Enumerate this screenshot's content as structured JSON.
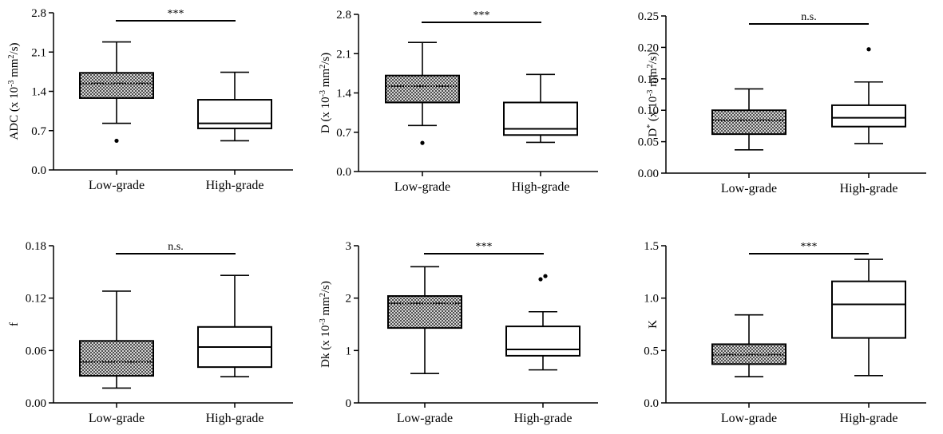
{
  "chart_data": [
    {
      "type": "box",
      "ylabel": "ADC (x 10-3 mm2/s)",
      "ylabel_parts": [
        "ADC (x 10",
        "-3",
        " mm",
        "2",
        "/s)"
      ],
      "yticks": [
        "0.0",
        "0.7",
        "1.4",
        "2.1",
        "2.8"
      ],
      "ylim": [
        0,
        2.8
      ],
      "categories": [
        "Low-grade",
        "High-grade"
      ],
      "significance": "***",
      "boxes": [
        {
          "category": "Low-grade",
          "fill": "hatched",
          "min": 0.83,
          "q1": 1.28,
          "median": 1.54,
          "q3": 1.73,
          "max": 2.28,
          "outliers": [
            0.52
          ]
        },
        {
          "category": "High-grade",
          "fill": "white",
          "min": 0.52,
          "q1": 0.74,
          "median": 0.83,
          "q3": 1.25,
          "max": 1.74,
          "outliers": []
        }
      ]
    },
    {
      "type": "box",
      "ylabel": "D (x 10-3 mm2/s)",
      "ylabel_parts": [
        "D (x 10",
        "-3",
        " mm",
        "2",
        "/s)"
      ],
      "yticks": [
        "0.0",
        "0.7",
        "1.4",
        "2.1",
        "2.8"
      ],
      "ylim": [
        0,
        2.8
      ],
      "categories": [
        "Low-grade",
        "High-grade"
      ],
      "significance": "***",
      "boxes": [
        {
          "category": "Low-grade",
          "fill": "hatched",
          "min": 0.82,
          "q1": 1.23,
          "median": 1.52,
          "q3": 1.71,
          "max": 2.3,
          "outliers": [
            0.51
          ]
        },
        {
          "category": "High-grade",
          "fill": "white",
          "min": 0.52,
          "q1": 0.65,
          "median": 0.76,
          "q3": 1.23,
          "max": 1.73,
          "outliers": []
        }
      ]
    },
    {
      "type": "box",
      "ylabel": "D* (x 10-3 mm2/s)",
      "ylabel_parts": [
        "D",
        "*",
        " (x 10",
        "-3",
        " mm",
        "2",
        "/s)"
      ],
      "yticks": [
        "0.00",
        "0.05",
        "0.10",
        "0.15",
        "0.20",
        "0.25"
      ],
      "ylim": [
        0,
        0.25
      ],
      "categories": [
        "Low-grade",
        "High-grade"
      ],
      "significance": "n.s.",
      "boxes": [
        {
          "category": "Low-grade",
          "fill": "hatched",
          "min": 0.037,
          "q1": 0.062,
          "median": 0.084,
          "q3": 0.1,
          "max": 0.134,
          "outliers": []
        },
        {
          "category": "High-grade",
          "fill": "white",
          "min": 0.047,
          "q1": 0.074,
          "median": 0.088,
          "q3": 0.108,
          "max": 0.145,
          "outliers": [
            0.197
          ]
        }
      ]
    },
    {
      "type": "box",
      "ylabel": "f",
      "ylabel_parts": [
        "f"
      ],
      "yticks": [
        "0.00",
        "0.06",
        "0.12",
        "0.18"
      ],
      "ylim": [
        0,
        0.18
      ],
      "categories": [
        "Low-grade",
        "High-grade"
      ],
      "significance": "n.s.",
      "boxes": [
        {
          "category": "Low-grade",
          "fill": "hatched",
          "min": 0.017,
          "q1": 0.031,
          "median": 0.047,
          "q3": 0.071,
          "max": 0.128,
          "outliers": []
        },
        {
          "category": "High-grade",
          "fill": "white",
          "min": 0.03,
          "q1": 0.041,
          "median": 0.064,
          "q3": 0.087,
          "max": 0.146,
          "outliers": []
        }
      ]
    },
    {
      "type": "box",
      "ylabel": "Dk (x 10-3 mm2/s)",
      "ylabel_parts": [
        "Dk (x 10",
        "-3",
        " mm",
        "2",
        "/s)"
      ],
      "yticks": [
        "0",
        "1",
        "2",
        "3"
      ],
      "ylim": [
        0,
        3
      ],
      "categories": [
        "Low-grade",
        "High-grade"
      ],
      "significance": "***",
      "boxes": [
        {
          "category": "Low-grade",
          "fill": "hatched",
          "min": 0.56,
          "q1": 1.43,
          "median": 1.9,
          "q3": 2.04,
          "max": 2.6,
          "outliers": []
        },
        {
          "category": "High-grade",
          "fill": "white",
          "min": 0.63,
          "q1": 0.9,
          "median": 1.02,
          "q3": 1.46,
          "max": 1.74,
          "outliers": [
            2.36,
            2.42
          ]
        }
      ]
    },
    {
      "type": "box",
      "ylabel": "K",
      "ylabel_parts": [
        "K"
      ],
      "yticks": [
        "0.0",
        "0.5",
        "1.0",
        "1.5"
      ],
      "ylim": [
        0,
        1.5
      ],
      "categories": [
        "Low-grade",
        "High-grade"
      ],
      "significance": "***",
      "boxes": [
        {
          "category": "Low-grade",
          "fill": "hatched",
          "min": 0.25,
          "q1": 0.37,
          "median": 0.46,
          "q3": 0.56,
          "max": 0.84,
          "outliers": []
        },
        {
          "category": "High-grade",
          "fill": "white",
          "min": 0.26,
          "q1": 0.62,
          "median": 0.94,
          "q3": 1.16,
          "max": 1.37,
          "outliers": []
        }
      ]
    }
  ]
}
